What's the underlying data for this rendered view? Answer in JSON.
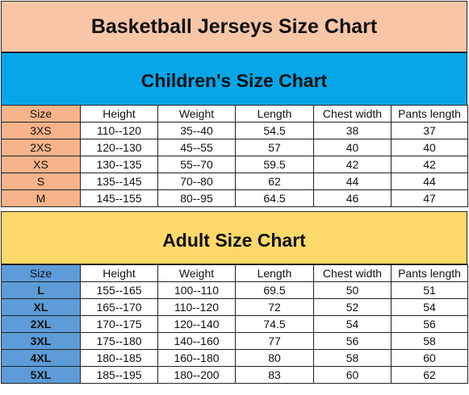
{
  "title": "Basketball Jerseys Size Chart",
  "children": {
    "heading": "Children's Size Chart",
    "columns": [
      "Size",
      "Height",
      "Weight",
      "Length",
      "Chest width",
      "Pants length"
    ],
    "rows": [
      [
        "3XS",
        "110--120",
        "35--40",
        "54.5",
        "38",
        "37"
      ],
      [
        "2XS",
        "120--130",
        "45--55",
        "57",
        "40",
        "40"
      ],
      [
        "XS",
        "130--135",
        "55--70",
        "59.5",
        "42",
        "42"
      ],
      [
        "S",
        "135--145",
        "70--80",
        "62",
        "44",
        "44"
      ],
      [
        "M",
        "145--155",
        "80--95",
        "64.5",
        "46",
        "47"
      ]
    ]
  },
  "adult": {
    "heading": "Adult Size Chart",
    "columns": [
      "Size",
      "Height",
      "Weight",
      "Length",
      "Chest width",
      "Pants length"
    ],
    "rows": [
      [
        "L",
        "155--165",
        "100--110",
        "69.5",
        "50",
        "51"
      ],
      [
        "XL",
        "165--170",
        "110--120",
        "72",
        "52",
        "54"
      ],
      [
        "2XL",
        "170--175",
        "120--140",
        "74.5",
        "54",
        "56"
      ],
      [
        "3XL",
        "175--180",
        "140--160",
        "77",
        "56",
        "58"
      ],
      [
        "4XL",
        "180--185",
        "160--180",
        "80",
        "58",
        "60"
      ],
      [
        "5XL",
        "185--195",
        "180--200",
        "83",
        "60",
        "62"
      ]
    ]
  },
  "colors": {
    "title_band": "#f7c6a7",
    "children_band": "#06a6e8",
    "children_size_cells": "#f7b48a",
    "adult_band": "#fdd96a",
    "adult_size_cells": "#5d9cd9"
  }
}
